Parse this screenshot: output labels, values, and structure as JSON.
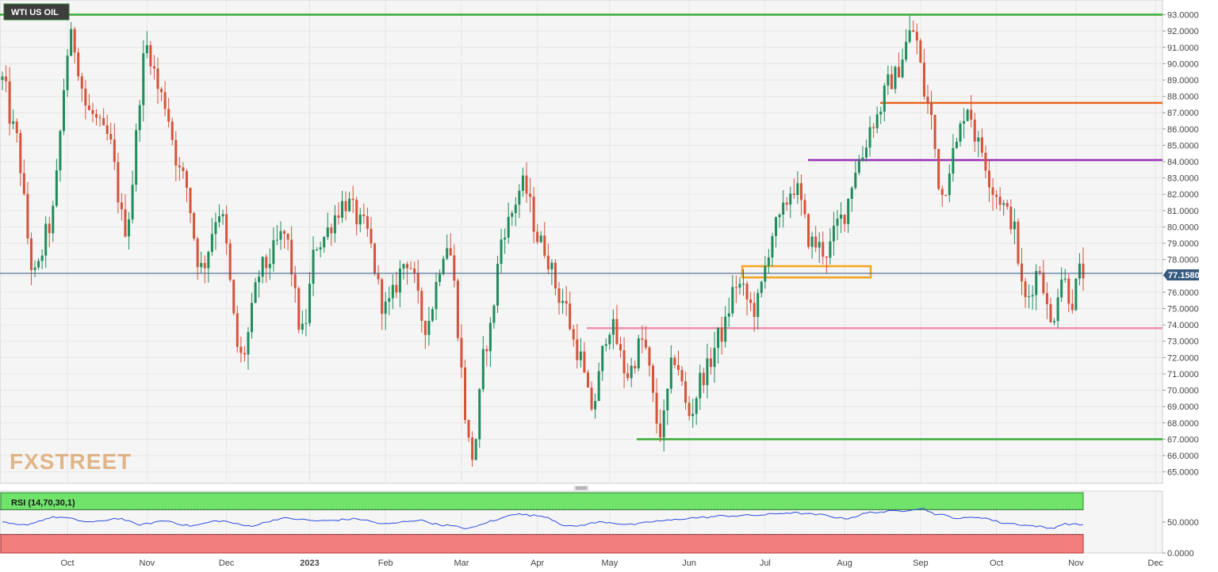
{
  "chart_data": {
    "type": "candlestick",
    "title": "WTI US OIL",
    "watermark": "FXSTREET",
    "price_axis": {
      "ylim": [
        64.3,
        93.9
      ],
      "ticks": [
        "93.0000",
        "92.0000",
        "91.0000",
        "90.0000",
        "89.0000",
        "88.0000",
        "87.0000",
        "86.0000",
        "85.0000",
        "84.0000",
        "83.0000",
        "82.0000",
        "81.0000",
        "80.0000",
        "79.0000",
        "78.0000",
        "77.0000",
        "76.0000",
        "75.0000",
        "74.0000",
        "73.0000",
        "72.0000",
        "71.0000",
        "70.0000",
        "69.0000",
        "68.0000",
        "67.0000",
        "66.0000",
        "65.0000"
      ]
    },
    "last_price": "77.1580",
    "x_labels": [
      "Oct",
      "Nov",
      "Dec",
      "2023",
      "Feb",
      "Mar",
      "Apr",
      "May",
      "Jun",
      "Jul",
      "Aug",
      "Sep",
      "Oct",
      "Nov",
      "Dec"
    ],
    "levels": [
      {
        "value": 93.0,
        "color": "#3aaa35"
      },
      {
        "value": 87.6,
        "color": "#e8651e"
      },
      {
        "value": 84.1,
        "color": "#9b30b8"
      },
      {
        "value": 73.8,
        "color": "#ef8fb0"
      },
      {
        "value": 67.0,
        "color": "#3aaa35"
      }
    ],
    "zone": {
      "low": 77.0,
      "high": 77.5,
      "color": "#f5a623"
    },
    "anchors": [
      {
        "i": 0,
        "v": 89.0
      },
      {
        "i": 3,
        "v": 86.0
      },
      {
        "i": 9,
        "v": 77.0
      },
      {
        "i": 13,
        "v": 80.0
      },
      {
        "i": 19,
        "v": 91.5
      },
      {
        "i": 24,
        "v": 87.0
      },
      {
        "i": 29,
        "v": 85.5
      },
      {
        "i": 34,
        "v": 80.0
      },
      {
        "i": 40,
        "v": 91.0
      },
      {
        "i": 44,
        "v": 88.0
      },
      {
        "i": 50,
        "v": 83.0
      },
      {
        "i": 55,
        "v": 77.5
      },
      {
        "i": 60,
        "v": 81.0
      },
      {
        "i": 66,
        "v": 72.0
      },
      {
        "i": 72,
        "v": 77.5
      },
      {
        "i": 78,
        "v": 79.5
      },
      {
        "i": 83,
        "v": 73.5
      },
      {
        "i": 87,
        "v": 79.0
      },
      {
        "i": 95,
        "v": 81.5
      },
      {
        "i": 100,
        "v": 80.0
      },
      {
        "i": 106,
        "v": 75.0
      },
      {
        "i": 112,
        "v": 78.0
      },
      {
        "i": 117,
        "v": 74.0
      },
      {
        "i": 123,
        "v": 79.0
      },
      {
        "i": 130,
        "v": 66.0
      },
      {
        "i": 134,
        "v": 73.0
      },
      {
        "i": 139,
        "v": 80.0
      },
      {
        "i": 144,
        "v": 82.5
      },
      {
        "i": 149,
        "v": 79.0
      },
      {
        "i": 155,
        "v": 75.5
      },
      {
        "i": 159,
        "v": 72.5
      },
      {
        "i": 163,
        "v": 69.0
      },
      {
        "i": 168,
        "v": 74.0
      },
      {
        "i": 173,
        "v": 71.0
      },
      {
        "i": 177,
        "v": 73.0
      },
      {
        "i": 182,
        "v": 67.5
      },
      {
        "i": 186,
        "v": 72.0
      },
      {
        "i": 190,
        "v": 68.5
      },
      {
        "i": 194,
        "v": 71.0
      },
      {
        "i": 199,
        "v": 73.5
      },
      {
        "i": 203,
        "v": 76.5
      },
      {
        "i": 208,
        "v": 75.0
      },
      {
        "i": 214,
        "v": 80.0
      },
      {
        "i": 219,
        "v": 82.5
      },
      {
        "i": 224,
        "v": 79.0
      },
      {
        "i": 228,
        "v": 78.5
      },
      {
        "i": 232,
        "v": 80.5
      },
      {
        "i": 237,
        "v": 84.0
      },
      {
        "i": 241,
        "v": 86.5
      },
      {
        "i": 246,
        "v": 89.0
      },
      {
        "i": 252,
        "v": 92.0
      },
      {
        "i": 256,
        "v": 87.5
      },
      {
        "i": 260,
        "v": 82.0
      },
      {
        "i": 263,
        "v": 84.5
      },
      {
        "i": 267,
        "v": 87.5
      },
      {
        "i": 270,
        "v": 85.0
      },
      {
        "i": 275,
        "v": 82.0
      },
      {
        "i": 279,
        "v": 80.5
      },
      {
        "i": 283,
        "v": 75.5
      },
      {
        "i": 287,
        "v": 77.5
      },
      {
        "i": 290,
        "v": 74.0
      },
      {
        "i": 293,
        "v": 77.0
      },
      {
        "i": 296,
        "v": 75.5
      },
      {
        "i": 298,
        "v": 77.2
      }
    ],
    "rsi": {
      "label": "RSI (14,70,30,1)",
      "ylim": [
        0,
        100
      ],
      "upper": 70,
      "lower": 30,
      "ticks": [
        "50.0000",
        "0.0000"
      ],
      "anchors": [
        {
          "i": 0,
          "v": 49
        },
        {
          "i": 5,
          "v": 45
        },
        {
          "i": 15,
          "v": 58
        },
        {
          "i": 25,
          "v": 50
        },
        {
          "i": 32,
          "v": 56
        },
        {
          "i": 38,
          "v": 46
        },
        {
          "i": 45,
          "v": 52
        },
        {
          "i": 52,
          "v": 44
        },
        {
          "i": 60,
          "v": 52
        },
        {
          "i": 68,
          "v": 44
        },
        {
          "i": 78,
          "v": 56
        },
        {
          "i": 88,
          "v": 52
        },
        {
          "i": 98,
          "v": 55
        },
        {
          "i": 106,
          "v": 47
        },
        {
          "i": 115,
          "v": 53
        },
        {
          "i": 122,
          "v": 45
        },
        {
          "i": 129,
          "v": 40
        },
        {
          "i": 136,
          "v": 52
        },
        {
          "i": 141,
          "v": 63
        },
        {
          "i": 149,
          "v": 60
        },
        {
          "i": 157,
          "v": 43
        },
        {
          "i": 166,
          "v": 50
        },
        {
          "i": 174,
          "v": 46
        },
        {
          "i": 182,
          "v": 52
        },
        {
          "i": 192,
          "v": 57
        },
        {
          "i": 200,
          "v": 60
        },
        {
          "i": 208,
          "v": 61
        },
        {
          "i": 218,
          "v": 65
        },
        {
          "i": 226,
          "v": 62
        },
        {
          "i": 233,
          "v": 56
        },
        {
          "i": 241,
          "v": 66
        },
        {
          "i": 248,
          "v": 68
        },
        {
          "i": 254,
          "v": 72
        },
        {
          "i": 259,
          "v": 62
        },
        {
          "i": 265,
          "v": 56
        },
        {
          "i": 270,
          "v": 58
        },
        {
          "i": 278,
          "v": 48
        },
        {
          "i": 285,
          "v": 44
        },
        {
          "i": 290,
          "v": 40
        },
        {
          "i": 294,
          "v": 47
        },
        {
          "i": 298,
          "v": 46
        }
      ]
    },
    "colors": {
      "up": "#1e8c5b",
      "down": "#d4533a",
      "price_line": "#34597e",
      "rsi_line": "#2d4ce0",
      "rsi_overbought": "#6fe36a",
      "rsi_oversold": "#f27e7e",
      "grid": "#e6e6e6",
      "plot_bg": "#f5f5f5"
    }
  }
}
